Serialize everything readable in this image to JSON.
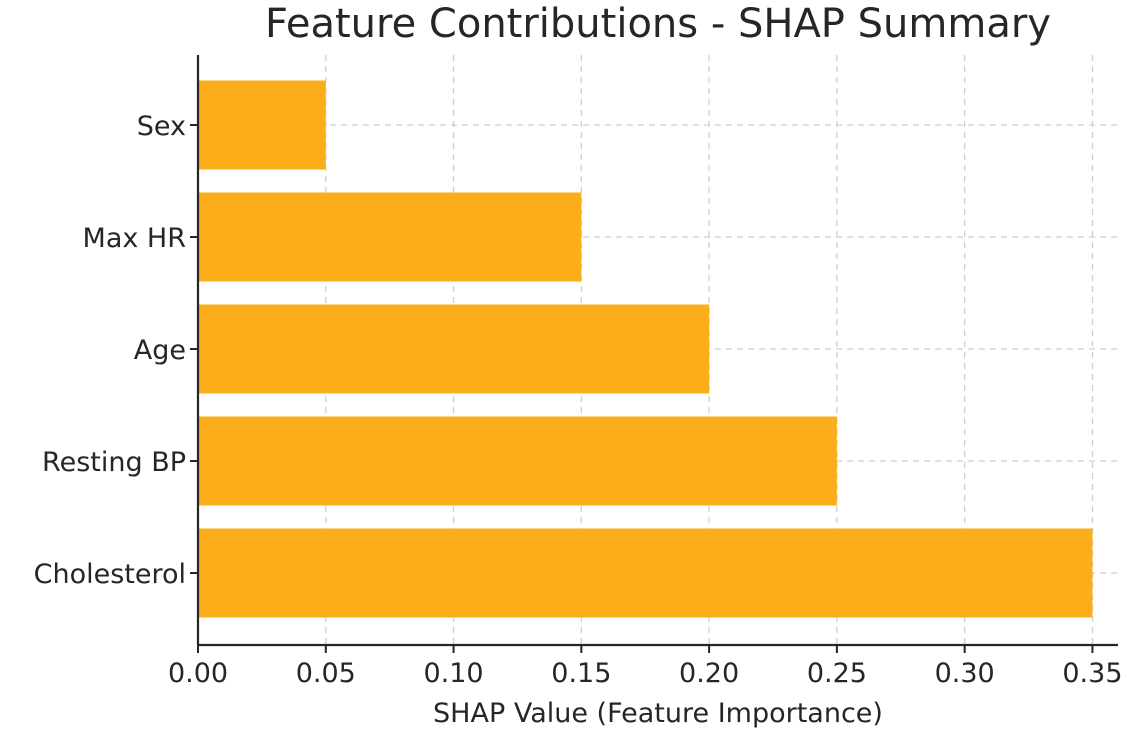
{
  "chart_data": {
    "type": "bar",
    "orientation": "horizontal",
    "title": "Feature Contributions - SHAP Summary",
    "xlabel": "SHAP Value (Feature Importance)",
    "ylabel": "",
    "categories": [
      "Cholesterol",
      "Resting BP",
      "Age",
      "Max HR",
      "Sex"
    ],
    "values": [
      0.35,
      0.25,
      0.2,
      0.15,
      0.05
    ],
    "xlim": [
      0,
      0.36
    ],
    "xticks": [
      0.0,
      0.05,
      0.1,
      0.15,
      0.2,
      0.25,
      0.3,
      0.35
    ],
    "xtick_labels": [
      "0.00",
      "0.05",
      "0.10",
      "0.15",
      "0.20",
      "0.25",
      "0.30",
      "0.35"
    ],
    "grid": true,
    "bar_color": "#FBAE1A"
  }
}
